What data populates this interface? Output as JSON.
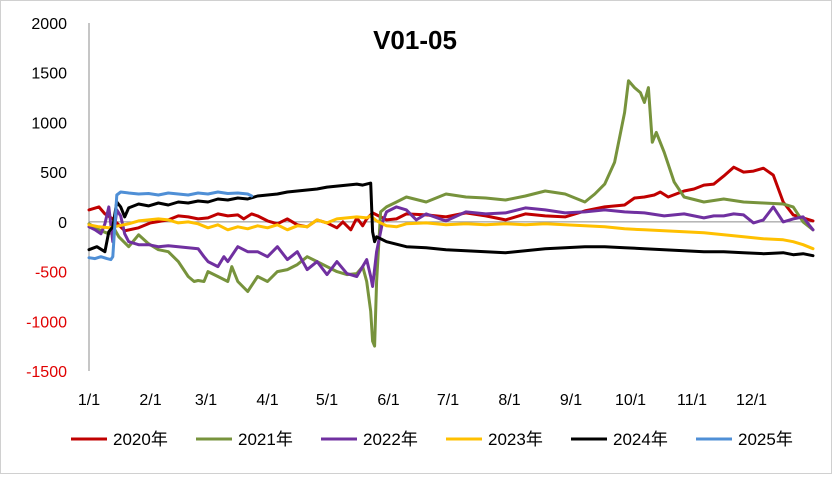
{
  "chart_data": {
    "type": "line",
    "title": "V01-05",
    "xlabel": "",
    "ylabel": "",
    "ylim": [
      -1500,
      2000
    ],
    "yticks": [
      2000,
      1500,
      1000,
      500,
      0,
      -500,
      -1000,
      -1500
    ],
    "x_tick_labels": [
      "1/1",
      "2/1",
      "3/1",
      "4/1",
      "5/1",
      "6/1",
      "7/1",
      "8/1",
      "9/1",
      "10/1",
      "11/1",
      "12/1"
    ],
    "x_tick_days": [
      0,
      31,
      59,
      90,
      120,
      151,
      181,
      212,
      243,
      273,
      304,
      334
    ],
    "x_range_days": [
      0,
      365
    ],
    "legend_position": "bottom",
    "series": [
      {
        "name": "2020年",
        "color": "#c00000",
        "x": [
          0,
          5,
          8,
          12,
          18,
          25,
          31,
          40,
          45,
          50,
          55,
          60,
          65,
          70,
          75,
          78,
          82,
          85,
          90,
          95,
          100,
          105,
          110,
          115,
          120,
          125,
          128,
          132,
          135,
          138,
          140,
          143,
          146,
          150,
          155,
          160,
          170,
          180,
          190,
          200,
          210,
          220,
          230,
          240,
          250,
          260,
          270,
          275,
          280,
          285,
          288,
          292,
          296,
          300,
          305,
          310,
          315,
          320,
          325,
          330,
          335,
          340,
          345,
          350,
          355,
          360,
          365
        ],
        "y": [
          120,
          150,
          80,
          30,
          -90,
          -60,
          -10,
          20,
          60,
          50,
          30,
          40,
          80,
          60,
          70,
          30,
          80,
          60,
          10,
          -20,
          30,
          -30,
          -50,
          20,
          -10,
          -60,
          0,
          -80,
          40,
          -40,
          30,
          90,
          60,
          20,
          30,
          80,
          70,
          50,
          90,
          60,
          20,
          80,
          60,
          50,
          110,
          150,
          170,
          240,
          250,
          270,
          300,
          250,
          280,
          310,
          330,
          370,
          380,
          460,
          550,
          500,
          510,
          540,
          470,
          200,
          70,
          40,
          10
        ]
      },
      {
        "name": "2021年",
        "color": "#77933c",
        "x": [
          0,
          5,
          10,
          13,
          15,
          20,
          25,
          30,
          35,
          40,
          45,
          50,
          53,
          55,
          58,
          60,
          65,
          70,
          72,
          75,
          80,
          85,
          90,
          95,
          100,
          105,
          110,
          115,
          120,
          125,
          130,
          135,
          138,
          140,
          142,
          143,
          144,
          145,
          147,
          150,
          155,
          160,
          170,
          180,
          190,
          200,
          210,
          220,
          230,
          240,
          250,
          255,
          260,
          265,
          268,
          270,
          272,
          275,
          278,
          280,
          282,
          284,
          286,
          290,
          295,
          300,
          310,
          320,
          330,
          340,
          350,
          355,
          360,
          365
        ],
        "y": [
          -20,
          -80,
          -120,
          -80,
          -150,
          -250,
          -130,
          -220,
          -280,
          -300,
          -400,
          -550,
          -600,
          -590,
          -600,
          -500,
          -550,
          -600,
          -450,
          -600,
          -700,
          -550,
          -600,
          -500,
          -480,
          -430,
          -350,
          -400,
          -450,
          -500,
          -530,
          -520,
          -450,
          -600,
          -900,
          -1200,
          -1250,
          -600,
          100,
          150,
          200,
          250,
          200,
          280,
          250,
          240,
          220,
          260,
          310,
          280,
          200,
          280,
          380,
          600,
          900,
          1100,
          1420,
          1350,
          1300,
          1200,
          1350,
          800,
          900,
          700,
          400,
          250,
          200,
          230,
          200,
          190,
          180,
          150,
          0,
          -80
        ]
      },
      {
        "name": "2022年",
        "color": "#7030a0",
        "x": [
          0,
          3,
          6,
          8,
          10,
          12,
          14,
          16,
          18,
          20,
          25,
          30,
          35,
          40,
          45,
          50,
          55,
          58,
          60,
          65,
          68,
          70,
          75,
          80,
          85,
          90,
          95,
          100,
          105,
          110,
          115,
          120,
          125,
          130,
          135,
          140,
          142,
          143,
          145,
          148,
          150,
          155,
          160,
          165,
          170,
          180,
          190,
          200,
          210,
          220,
          230,
          240,
          250,
          260,
          270,
          280,
          290,
          300,
          310,
          315,
          320,
          325,
          330,
          335,
          340,
          345,
          350,
          355,
          360,
          363,
          365
        ],
        "y": [
          -50,
          -80,
          -120,
          -20,
          150,
          -200,
          120,
          60,
          -120,
          -200,
          -230,
          -230,
          -250,
          -240,
          -250,
          -260,
          -270,
          -350,
          -400,
          -450,
          -350,
          -400,
          -250,
          -300,
          -300,
          -350,
          -250,
          -380,
          -300,
          -480,
          -400,
          -530,
          -400,
          -520,
          -550,
          -380,
          -550,
          -650,
          -300,
          0,
          100,
          150,
          120,
          20,
          80,
          10,
          100,
          80,
          90,
          140,
          120,
          90,
          100,
          120,
          100,
          90,
          60,
          80,
          40,
          60,
          60,
          80,
          70,
          -10,
          20,
          150,
          0,
          30,
          50,
          -30,
          -80
        ]
      },
      {
        "name": "2023年",
        "color": "#ffc000",
        "x": [
          0,
          5,
          10,
          15,
          20,
          25,
          30,
          35,
          40,
          45,
          50,
          55,
          60,
          65,
          70,
          75,
          80,
          85,
          90,
          95,
          100,
          105,
          110,
          115,
          120,
          125,
          130,
          135,
          140,
          142,
          145,
          148,
          150,
          155,
          160,
          170,
          180,
          190,
          200,
          210,
          220,
          230,
          240,
          250,
          260,
          270,
          280,
          290,
          300,
          310,
          320,
          330,
          340,
          350,
          355,
          360,
          365
        ],
        "y": [
          -30,
          -50,
          -60,
          -40,
          -20,
          10,
          20,
          30,
          20,
          -10,
          0,
          -20,
          -60,
          -30,
          -80,
          -50,
          -70,
          -40,
          -60,
          -30,
          -80,
          -40,
          -50,
          20,
          -10,
          30,
          40,
          50,
          40,
          60,
          10,
          -20,
          -40,
          -50,
          -20,
          -10,
          -30,
          -20,
          -30,
          -20,
          -30,
          -20,
          -30,
          -40,
          -50,
          -70,
          -80,
          -90,
          -100,
          -110,
          -130,
          -150,
          -170,
          -180,
          -200,
          -230,
          -270
        ]
      },
      {
        "name": "2024年",
        "color": "#000000",
        "x": [
          0,
          4,
          8,
          10,
          12,
          14,
          16,
          18,
          20,
          25,
          30,
          35,
          40,
          45,
          50,
          55,
          60,
          65,
          70,
          75,
          80,
          85,
          90,
          95,
          100,
          105,
          110,
          115,
          120,
          125,
          130,
          135,
          138,
          140,
          142,
          143,
          144,
          145,
          150,
          160,
          170,
          180,
          190,
          200,
          210,
          220,
          230,
          240,
          250,
          260,
          270,
          280,
          290,
          300,
          310,
          320,
          330,
          340,
          350,
          355,
          360,
          365
        ],
        "y": [
          -280,
          -250,
          -300,
          -100,
          -50,
          200,
          150,
          50,
          140,
          180,
          160,
          190,
          170,
          200,
          190,
          210,
          200,
          230,
          220,
          240,
          230,
          260,
          270,
          280,
          300,
          310,
          320,
          330,
          350,
          360,
          370,
          380,
          370,
          380,
          390,
          -100,
          -200,
          -150,
          -200,
          -250,
          -260,
          -280,
          -290,
          -300,
          -310,
          -290,
          -270,
          -260,
          -250,
          -250,
          -260,
          -270,
          -280,
          -290,
          -300,
          -300,
          -310,
          -320,
          -310,
          -330,
          -320,
          -340
        ]
      },
      {
        "name": "2025年",
        "color": "#4f8fd6",
        "x": [
          0,
          3,
          6,
          9,
          11,
          12,
          14,
          16,
          20,
          25,
          30,
          35,
          40,
          45,
          50,
          55,
          60,
          65,
          70,
          75,
          80,
          82
        ],
        "y": [
          -360,
          -370,
          -350,
          -370,
          -380,
          -350,
          270,
          300,
          290,
          280,
          285,
          270,
          290,
          280,
          270,
          290,
          280,
          300,
          285,
          290,
          280,
          260
        ]
      }
    ]
  }
}
